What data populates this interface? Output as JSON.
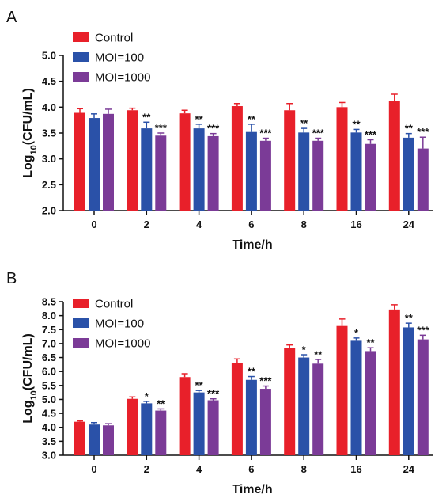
{
  "colors": {
    "Control": "#e8202a",
    "MOI=100": "#2a51a8",
    "MOI=1000": "#7b3b97"
  },
  "chart_data": [
    {
      "panel": "A",
      "type": "bar",
      "xlabel": "Time/h",
      "ylabel_prefix": "Log",
      "ylabel_sub": "10",
      "ylabel_suffix": "(CFU/mL)",
      "ylim": [
        2.0,
        5.0
      ],
      "yticks": [
        "2.0",
        "2.5",
        "3.0",
        "3.5",
        "4.0",
        "4.5",
        "5.0"
      ],
      "categories": [
        "0",
        "2",
        "4",
        "6",
        "8",
        "16",
        "24"
      ],
      "legend_position": "top-left",
      "series": [
        {
          "name": "Control",
          "values": [
            3.89,
            3.94,
            3.88,
            4.02,
            3.94,
            4.0,
            4.12
          ],
          "errors": [
            0.08,
            0.04,
            0.06,
            0.05,
            0.13,
            0.09,
            0.13
          ],
          "sig": [
            "",
            "",
            "",
            "",
            "",
            "",
            ""
          ]
        },
        {
          "name": "MOI=100",
          "values": [
            3.79,
            3.59,
            3.59,
            3.52,
            3.51,
            3.51,
            3.41
          ],
          "errors": [
            0.08,
            0.12,
            0.08,
            0.15,
            0.08,
            0.06,
            0.08
          ],
          "sig": [
            "",
            "**",
            "**",
            "**",
            "**",
            "**",
            "**"
          ]
        },
        {
          "name": "MOI=1000",
          "values": [
            3.87,
            3.45,
            3.44,
            3.35,
            3.35,
            3.29,
            3.2
          ],
          "errors": [
            0.09,
            0.05,
            0.05,
            0.05,
            0.05,
            0.08,
            0.22
          ],
          "sig": [
            "",
            "***",
            "***",
            "***",
            "***",
            "***",
            "***"
          ]
        }
      ]
    },
    {
      "panel": "B",
      "type": "bar",
      "xlabel": "Time/h",
      "ylabel_prefix": "Log",
      "ylabel_sub": "10",
      "ylabel_suffix": "(CFU/mL)",
      "ylim": [
        3.0,
        8.5
      ],
      "yticks": [
        "3.0",
        "3.5",
        "4.0",
        "4.5",
        "5.0",
        "5.5",
        "6.0",
        "6.5",
        "7.0",
        "7.5",
        "8.0",
        "8.5"
      ],
      "categories": [
        "0",
        "2",
        "4",
        "6",
        "8",
        "16",
        "24"
      ],
      "legend_position": "top-left",
      "series": [
        {
          "name": "Control",
          "values": [
            4.2,
            5.02,
            5.8,
            6.3,
            6.85,
            7.63,
            8.22
          ],
          "errors": [
            0.03,
            0.07,
            0.12,
            0.15,
            0.1,
            0.25,
            0.17
          ],
          "sig": [
            "",
            "",
            "",
            "",
            "",
            "",
            ""
          ]
        },
        {
          "name": "MOI=100",
          "values": [
            4.1,
            4.86,
            5.25,
            5.7,
            6.5,
            7.1,
            7.58
          ],
          "errors": [
            0.07,
            0.07,
            0.07,
            0.12,
            0.1,
            0.1,
            0.15
          ],
          "sig": [
            "",
            "*",
            "**",
            "**",
            "*",
            "*",
            "**"
          ]
        },
        {
          "name": "MOI=1000",
          "values": [
            4.07,
            4.6,
            4.97,
            5.38,
            6.28,
            6.73,
            7.15
          ],
          "errors": [
            0.06,
            0.06,
            0.05,
            0.1,
            0.15,
            0.12,
            0.15
          ],
          "sig": [
            "",
            "**",
            "***",
            "***",
            "**",
            "**",
            "***"
          ]
        }
      ]
    }
  ]
}
